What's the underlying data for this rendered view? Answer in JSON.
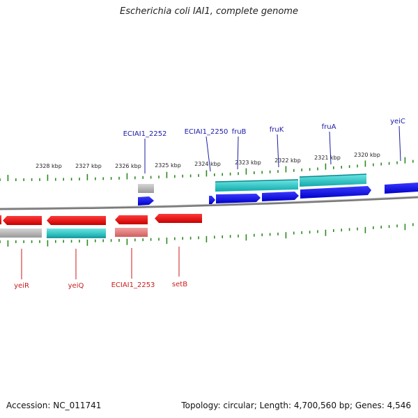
{
  "title": "Escherichia coli IAI1, complete genome",
  "accession": "Accession: NC_011741",
  "topology": "Topology: circular; Length: 4,700,560 bp; Genes: 4,546",
  "colors": {
    "forward_cds": "#0000ee",
    "reverse_cds": "#ee0000",
    "forward_label": "#1a1aa6",
    "reverse_label": "#cc1a1a",
    "teal": "#1ec8c8",
    "gray_box": "#b4b4b4",
    "pink_box": "#e27a7a",
    "tick": "#2a8a1e",
    "backbone": "#808080"
  },
  "scale_labels": [
    "2328 kbp",
    "2327 kbp",
    "2326 kbp",
    "2325 kbp",
    "2324 kbp",
    "2323 kbp",
    "2322 kbp",
    "2321 kbp",
    "2320 kbp"
  ],
  "forward_genes": [
    "ECIAI1_2252",
    "ECIAI1_2250",
    "fruB",
    "fruK",
    "fruA",
    "yeiC"
  ],
  "reverse_genes": [
    "yeiR",
    "yeiQ",
    "ECIAI1_2253",
    "setB"
  ]
}
